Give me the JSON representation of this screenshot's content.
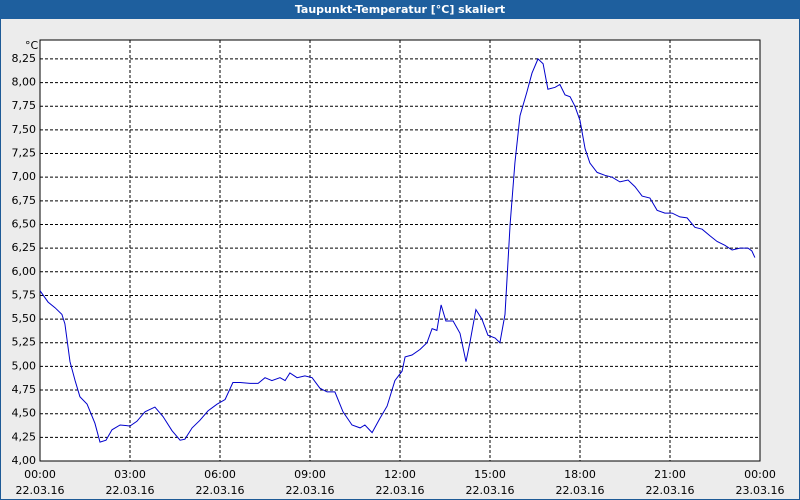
{
  "chart_data": {
    "type": "line",
    "title": "Taupunkt-Temperatur [°C] skaliert",
    "y_unit": "°C",
    "x": [
      0,
      0.27,
      0.5,
      0.73,
      0.83,
      1.0,
      1.17,
      1.33,
      1.57,
      1.83,
      2.0,
      2.2,
      2.4,
      2.67,
      3.0,
      3.23,
      3.5,
      3.83,
      4.1,
      4.4,
      4.67,
      4.83,
      5.07,
      5.33,
      5.6,
      5.9,
      6.17,
      6.43,
      6.67,
      7.0,
      7.27,
      7.5,
      7.73,
      8.0,
      8.17,
      8.33,
      8.57,
      8.83,
      9.07,
      9.33,
      9.57,
      9.83,
      10.1,
      10.4,
      10.67,
      10.83,
      11.07,
      11.33,
      11.57,
      11.83,
      12.07,
      12.17,
      12.4,
      12.67,
      12.9,
      13.07,
      13.23,
      13.37,
      13.53,
      13.77,
      14.0,
      14.2,
      14.33,
      14.53,
      14.73,
      14.93,
      15.17,
      15.33,
      15.5,
      15.67,
      15.83,
      16.0,
      16.23,
      16.4,
      16.6,
      16.77,
      16.93,
      17.17,
      17.33,
      17.5,
      17.67,
      17.83,
      18.0,
      18.17,
      18.33,
      18.57,
      18.83,
      19.07,
      19.33,
      19.6,
      19.83,
      20.07,
      20.33,
      20.57,
      20.83,
      21.07,
      21.33,
      21.57,
      21.83,
      22.07,
      22.33,
      22.57,
      22.83,
      23.07,
      23.33,
      23.6,
      23.73,
      23.83
    ],
    "series": [
      {
        "name": "Taupunkt-Temperatur",
        "color": "#0000cc",
        "values": [
          5.8,
          5.68,
          5.62,
          5.55,
          5.45,
          5.05,
          4.85,
          4.68,
          4.6,
          4.4,
          4.2,
          4.22,
          4.33,
          4.38,
          4.37,
          4.42,
          4.52,
          4.57,
          4.47,
          4.32,
          4.22,
          4.23,
          4.35,
          4.43,
          4.53,
          4.6,
          4.65,
          4.83,
          4.83,
          4.82,
          4.82,
          4.88,
          4.85,
          4.88,
          4.85,
          4.93,
          4.88,
          4.9,
          4.88,
          4.77,
          4.73,
          4.73,
          4.52,
          4.38,
          4.35,
          4.38,
          4.3,
          4.45,
          4.58,
          4.85,
          4.95,
          5.1,
          5.12,
          5.18,
          5.25,
          5.4,
          5.38,
          5.65,
          5.48,
          5.48,
          5.35,
          5.05,
          5.25,
          5.6,
          5.5,
          5.33,
          5.3,
          5.25,
          5.55,
          6.5,
          7.15,
          7.65,
          7.9,
          8.1,
          8.25,
          8.2,
          7.93,
          7.95,
          7.98,
          7.87,
          7.85,
          7.75,
          7.6,
          7.3,
          7.15,
          7.05,
          7.02,
          7.0,
          6.95,
          6.97,
          6.9,
          6.8,
          6.78,
          6.65,
          6.62,
          6.62,
          6.58,
          6.57,
          6.47,
          6.45,
          6.38,
          6.32,
          6.28,
          6.23,
          6.25,
          6.25,
          6.22,
          6.15
        ]
      }
    ],
    "xlim": [
      0,
      24
    ],
    "xticks": [
      {
        "value": 0,
        "label": "00:00"
      },
      {
        "value": 3,
        "label": "03:00"
      },
      {
        "value": 6,
        "label": "06:00"
      },
      {
        "value": 9,
        "label": "09:00"
      },
      {
        "value": 12,
        "label": "12:00"
      },
      {
        "value": 15,
        "label": "15:00"
      },
      {
        "value": 18,
        "label": "18:00"
      },
      {
        "value": 21,
        "label": "21:00"
      },
      {
        "value": 24,
        "label": "00:00"
      }
    ],
    "xtick_dates": [
      "22.03.16",
      "22.03.16",
      "22.03.16",
      "22.03.16",
      "22.03.16",
      "22.03.16",
      "22.03.16",
      "22.03.16",
      "23.03.16"
    ],
    "ylim": [
      4,
      8.45
    ],
    "yticks": [
      {
        "value": 4,
        "label": "4,00"
      },
      {
        "value": 4.25,
        "label": "4,25"
      },
      {
        "value": 4.5,
        "label": "4,50"
      },
      {
        "value": 4.75,
        "label": "4,75"
      },
      {
        "value": 5,
        "label": "5,00"
      },
      {
        "value": 5.25,
        "label": "5,25"
      },
      {
        "value": 5.5,
        "label": "5,50"
      },
      {
        "value": 5.75,
        "label": "5,75"
      },
      {
        "value": 6,
        "label": "6,00"
      },
      {
        "value": 6.25,
        "label": "6,25"
      },
      {
        "value": 6.5,
        "label": "6,50"
      },
      {
        "value": 6.75,
        "label": "6,75"
      },
      {
        "value": 7,
        "label": "7,00"
      },
      {
        "value": 7.25,
        "label": "7,25"
      },
      {
        "value": 7.5,
        "label": "7,50"
      },
      {
        "value": 7.75,
        "label": "7,75"
      },
      {
        "value": 8,
        "label": "8,00"
      },
      {
        "value": 8.25,
        "label": "8,25"
      }
    ],
    "grid": true
  }
}
